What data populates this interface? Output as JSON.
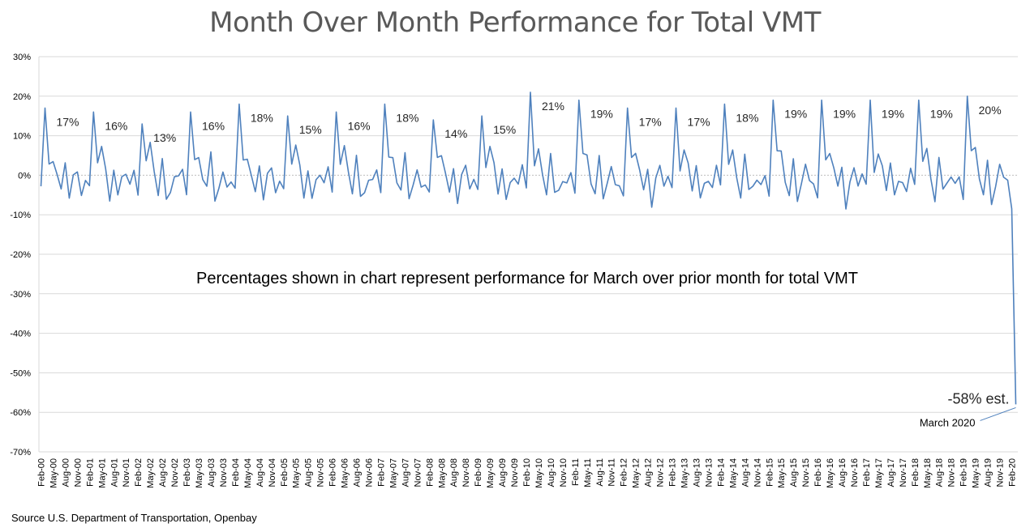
{
  "chart_data": {
    "type": "line",
    "title": "Month Over Month Performance for Total VMT",
    "xlabel": "",
    "ylabel": "",
    "ylim": [
      -70,
      30
    ],
    "y_ticks": [
      "30%",
      "20%",
      "10%",
      "0%",
      "-10%",
      "-20%",
      "-30%",
      "-40%",
      "-50%",
      "-60%",
      "-70%"
    ],
    "grid": true,
    "legend": "none",
    "line_color": "#4F81BD",
    "x_tick_labels": [
      "Feb-00",
      "May-00",
      "Aug-00",
      "Nov-00",
      "Feb-01",
      "May-01",
      "Aug-01",
      "Nov-01",
      "Feb-02",
      "May-02",
      "Aug-02",
      "Nov-02",
      "Feb-03",
      "May-03",
      "Aug-03",
      "Nov-03",
      "Feb-04",
      "May-04",
      "Aug-04",
      "Nov-04",
      "Feb-05",
      "May-05",
      "Aug-05",
      "Nov-05",
      "Feb-06",
      "May-06",
      "Aug-06",
      "Nov-06",
      "Feb-07",
      "May-07",
      "Aug-07",
      "Nov-07",
      "Feb-08",
      "May-08",
      "Aug-08",
      "Nov-08",
      "Feb-09",
      "May-09",
      "Aug-09",
      "Nov-09",
      "Feb-10",
      "May-10",
      "Aug-10",
      "Nov-10",
      "Feb-11",
      "May-11",
      "Aug-11",
      "Nov-11",
      "Feb-12",
      "May-12",
      "Aug-12",
      "Nov-12",
      "Feb-13",
      "May-13",
      "Aug-13",
      "Nov-13",
      "Feb-14",
      "May-14",
      "Aug-14",
      "Nov-14",
      "Feb-15",
      "May-15",
      "Aug-15",
      "Nov-15",
      "Feb-16",
      "May-16",
      "Aug-16",
      "Nov-16",
      "Feb-17",
      "May-17",
      "Aug-17",
      "Nov-17",
      "Feb-18",
      "May-18",
      "Aug-18",
      "Nov-18",
      "Feb-19",
      "May-19",
      "Aug-19",
      "Nov-19",
      "Feb-20"
    ],
    "march_values": [
      17,
      16,
      13,
      16,
      18,
      15,
      16,
      18,
      14,
      15,
      21,
      19,
      17,
      17,
      18,
      19,
      19,
      19,
      19,
      20
    ],
    "march_labels": [
      "17%",
      "16%",
      "13%",
      "16%",
      "18%",
      "15%",
      "16%",
      "18%",
      "14%",
      "15%",
      "21%",
      "19%",
      "17%",
      "17%",
      "18%",
      "19%",
      "19%",
      "19%",
      "19%",
      "20%"
    ],
    "final_point": {
      "month": "Mar-20",
      "value": -58,
      "label": "-58% est.",
      "callout": "March 2020"
    },
    "annotation": "Percentages shown in chart represent performance for March over prior month for total VMT",
    "source": "Source U.S. Department of Transportation, Openbay"
  }
}
